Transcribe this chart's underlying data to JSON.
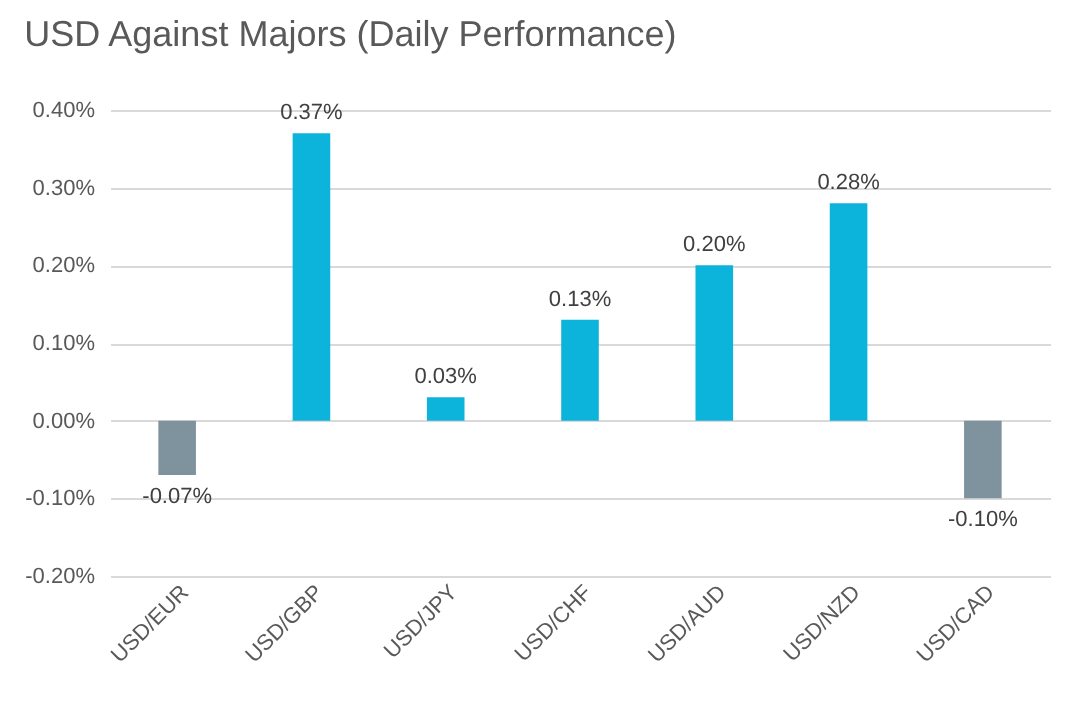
{
  "chart_data": {
    "type": "bar",
    "title": "USD Against Majors (Daily Performance)",
    "categories": [
      "USD/EUR",
      "USD/GBP",
      "USD/JPY",
      "USD/CHF",
      "USD/AUD",
      "USD/NZD",
      "USD/CAD"
    ],
    "values": [
      -0.07,
      0.37,
      0.03,
      0.13,
      0.2,
      0.28,
      -0.1
    ],
    "colors": [
      "#7f939e",
      "#0cb4dc",
      "#0cb4dc",
      "#0cb4dc",
      "#0cb4dc",
      "#0cb4dc",
      "#7f939e"
    ],
    "value_labels": [
      "-0.07%",
      "0.37%",
      "0.03%",
      "0.13%",
      "0.20%",
      "0.28%",
      "-0.10%"
    ],
    "ylim": [
      -0.2,
      0.4
    ],
    "yticks": [
      {
        "value": -0.2,
        "label": "-0.20%"
      },
      {
        "value": -0.1,
        "label": "-0.10%"
      },
      {
        "value": 0,
        "label": "0.00%"
      },
      {
        "value": 0.1,
        "label": "0.10%"
      },
      {
        "value": 0.2,
        "label": "0.20%"
      },
      {
        "value": 0.3,
        "label": "0.30%"
      },
      {
        "value": 0.4,
        "label": "0.40%"
      }
    ],
    "grid": "y"
  }
}
